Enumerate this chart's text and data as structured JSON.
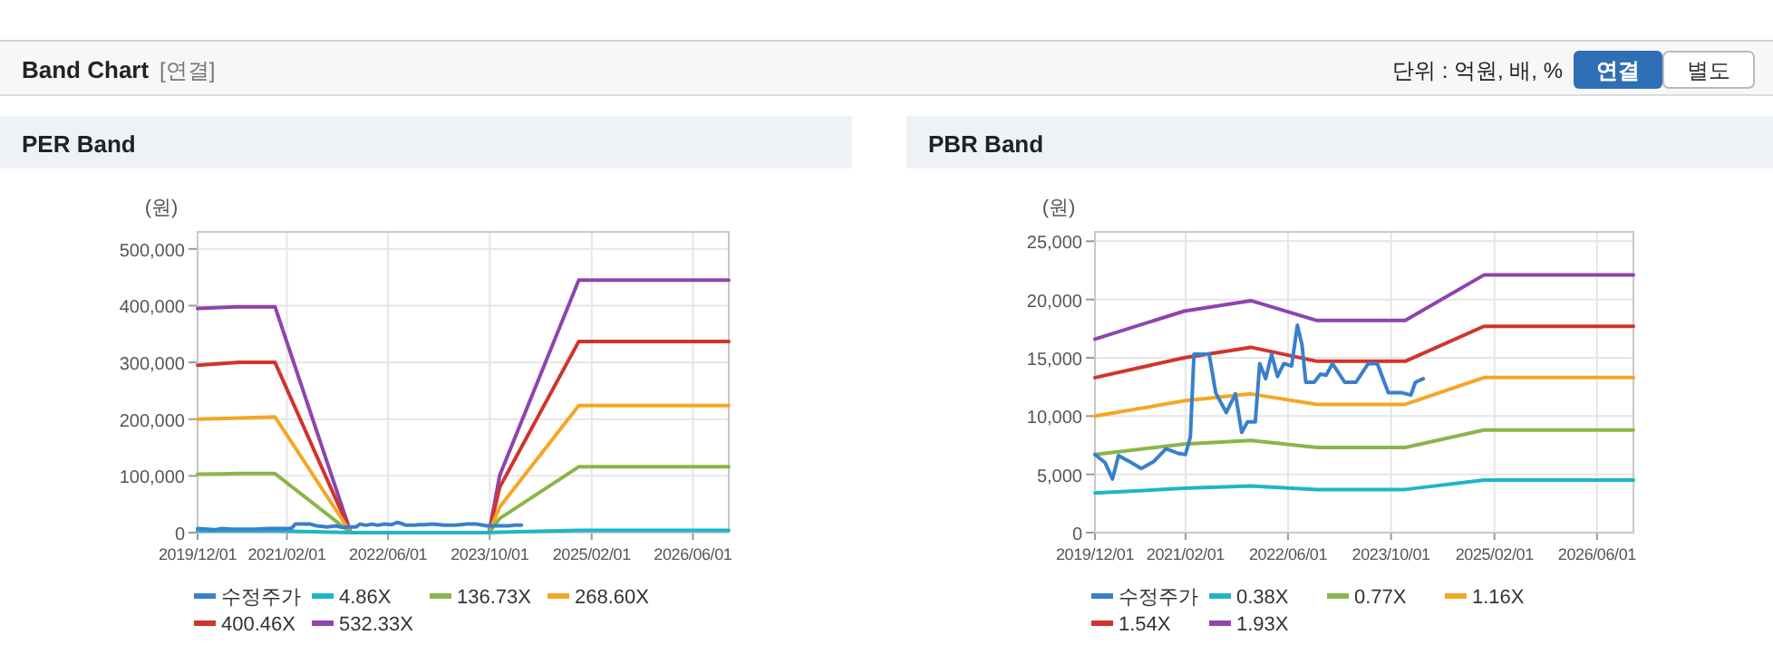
{
  "chart_data": [
    {
      "type": "other",
      "title": "Band Chart",
      "annotations": [
        "[연결]",
        "단위 : 억원, 배, %",
        "연결",
        "별도"
      ]
    },
    {
      "type": "line",
      "title": "PER Band",
      "ylabel": "(원)",
      "grid": true,
      "legend": "bottom",
      "xlim": [
        "2019-12-01",
        "2026-11-20"
      ],
      "ylim": [
        0,
        530000
      ],
      "xticks": [
        {
          "value": "2019-12-01",
          "label": "2019/12/01"
        },
        {
          "value": "2021-02-01",
          "label": "2021/02/01"
        },
        {
          "value": "2022-06-01",
          "label": "2022/06/01"
        },
        {
          "value": "2023-10-01",
          "label": "2023/10/01"
        },
        {
          "value": "2025-02-01",
          "label": "2025/02/01"
        },
        {
          "value": "2026-06-01",
          "label": "2026/06/01"
        }
      ],
      "yticks": [
        0,
        {
          "value": 100000,
          "label": "100,000"
        },
        {
          "value": 200000,
          "label": "200,000"
        },
        {
          "value": 300000,
          "label": "300,000"
        },
        {
          "value": 400000,
          "label": "400,000"
        },
        {
          "value": 500000,
          "label": "500,000"
        }
      ],
      "x": [
        "2019-12-01",
        "2020-06-13",
        "2020-12-06",
        "2021-12-04",
        "2023-09-28",
        "2023-11-18",
        "2024-12-01",
        "2026-11-20"
      ],
      "series": [
        {
          "name": "수정주가",
          "color": "#3a7fcc",
          "x": [
            "2019-12-01",
            "2020-01-18",
            "2020-02-22",
            "2020-03-21",
            "2020-05-12",
            "2020-07-07",
            "2020-09-04",
            "2020-11-01",
            "2020-12-28",
            "2021-02-01",
            "2021-02-24",
            "2021-03-13",
            "2021-04-06",
            "2021-05-24",
            "2021-06-24",
            "2021-08-13",
            "2021-09-25",
            "2021-10-25",
            "2021-11-21",
            "2021-12-28",
            "2022-01-18",
            "2022-02-15",
            "2022-03-15",
            "2022-04-12",
            "2022-05-12",
            "2022-06-18",
            "2022-07-15",
            "2022-08-06",
            "2022-08-24",
            "2022-10-03",
            "2022-11-01",
            "2022-11-28",
            "2022-12-28",
            "2023-02-24",
            "2023-04-18",
            "2023-06-15",
            "2023-07-28",
            "2023-09-18",
            "2023-11-21",
            "2024-01-03",
            "2024-01-24",
            "2024-03-01"
          ],
          "values": [
            7000,
            6000,
            5000,
            7000,
            6000,
            6000,
            6000,
            7000,
            7000,
            7000,
            8000,
            15000,
            15000,
            15000,
            12000,
            10000,
            12000,
            9000,
            10000,
            10000,
            15000,
            13000,
            15000,
            13000,
            15000,
            14000,
            18000,
            16000,
            13000,
            13000,
            14000,
            14000,
            15000,
            13000,
            13000,
            15000,
            15000,
            12000,
            12000,
            12000,
            13000,
            13000
          ]
        },
        {
          "name": "4.86X",
          "color": "#1fb5c8",
          "values": [
            3000,
            3000,
            3000,
            0,
            0,
            1000,
            4000,
            4000
          ]
        },
        {
          "name": "136.73X",
          "color": "#8ab54a",
          "values": [
            103000,
            104000,
            104000,
            0,
            0,
            25000,
            116000,
            116000
          ]
        },
        {
          "name": "268.60X",
          "color": "#f5a623",
          "values": [
            200000,
            202000,
            204000,
            0,
            0,
            45000,
            224000,
            224000
          ]
        },
        {
          "name": "400.46X",
          "color": "#d0342c",
          "values": [
            295000,
            300000,
            300000,
            0,
            0,
            80000,
            337000,
            337000
          ]
        },
        {
          "name": "532.33X",
          "color": "#8e44ad",
          "values": [
            395000,
            398000,
            398000,
            0,
            0,
            101000,
            445000,
            445000
          ]
        }
      ]
    },
    {
      "type": "line",
      "title": "PBR Band",
      "ylabel": "(원)",
      "grid": true,
      "legend": "bottom",
      "xlim": [
        "2019-12-01",
        "2026-11-20"
      ],
      "ylim": [
        0,
        25800
      ],
      "xticks": [
        {
          "value": "2019-12-01",
          "label": "2019/12/01"
        },
        {
          "value": "2021-02-01",
          "label": "2021/02/01"
        },
        {
          "value": "2022-06-01",
          "label": "2022/06/01"
        },
        {
          "value": "2023-10-01",
          "label": "2023/10/01"
        },
        {
          "value": "2025-02-01",
          "label": "2025/02/01"
        },
        {
          "value": "2026-06-01",
          "label": "2026/06/01"
        }
      ],
      "yticks": [
        0,
        {
          "value": 5000,
          "label": "5,000"
        },
        {
          "value": 10000,
          "label": "10,000"
        },
        {
          "value": 15000,
          "label": "15,000"
        },
        {
          "value": 20000,
          "label": "20,000"
        },
        {
          "value": 25000,
          "label": "25,000"
        }
      ],
      "x": [
        "2019-12-01",
        "2021-01-25",
        "2021-12-07",
        "2022-10-16",
        "2023-12-07",
        "2024-12-13",
        "2026-11-20"
      ],
      "series": [
        {
          "name": "수정주가",
          "color": "#3a7fcc",
          "x": [
            "2019-12-01",
            "2020-01-18",
            "2020-02-22",
            "2020-03-21",
            "2020-05-12",
            "2020-07-07",
            "2020-09-04",
            "2020-11-01",
            "2020-12-28",
            "2021-02-01",
            "2021-02-24",
            "2021-03-13",
            "2021-04-06",
            "2021-05-24",
            "2021-06-24",
            "2021-08-13",
            "2021-09-25",
            "2021-10-25",
            "2021-11-21",
            "2021-12-28",
            "2022-01-18",
            "2022-02-15",
            "2022-03-15",
            "2022-04-12",
            "2022-05-12",
            "2022-06-18",
            "2022-07-15",
            "2022-08-06",
            "2022-08-24",
            "2022-10-03",
            "2022-11-01",
            "2022-11-28",
            "2022-12-28",
            "2023-02-24",
            "2023-04-18",
            "2023-06-15",
            "2023-07-28",
            "2023-09-18",
            "2023-11-21",
            "2024-01-03",
            "2024-01-24",
            "2024-03-01"
          ],
          "values": [
            6700,
            6000,
            4600,
            6600,
            6100,
            5500,
            6100,
            7200,
            6800,
            6700,
            8200,
            15300,
            15300,
            15300,
            12000,
            10300,
            11900,
            8600,
            9500,
            9500,
            14500,
            13200,
            15300,
            13400,
            14500,
            14300,
            17800,
            16100,
            12900,
            12900,
            13600,
            13500,
            14500,
            12900,
            12900,
            14500,
            14500,
            12000,
            12000,
            11800,
            12900,
            13200
          ]
        },
        {
          "name": "0.38X",
          "color": "#1fb5c8",
          "values": [
            3400,
            3800,
            4000,
            3700,
            3700,
            4500,
            4500
          ]
        },
        {
          "name": "0.77X",
          "color": "#8ab54a",
          "values": [
            6700,
            7600,
            7900,
            7300,
            7300,
            8800,
            8800
          ]
        },
        {
          "name": "1.16X",
          "color": "#f5a623",
          "values": [
            10000,
            11300,
            11900,
            11000,
            11000,
            13300,
            13300
          ]
        },
        {
          "name": "1.54X",
          "color": "#d0342c",
          "values": [
            13300,
            15000,
            15900,
            14700,
            14700,
            17700,
            17700
          ]
        },
        {
          "name": "1.93X",
          "color": "#8e44ad",
          "values": [
            16600,
            19000,
            19900,
            18200,
            18200,
            22100,
            22100
          ]
        }
      ]
    }
  ]
}
